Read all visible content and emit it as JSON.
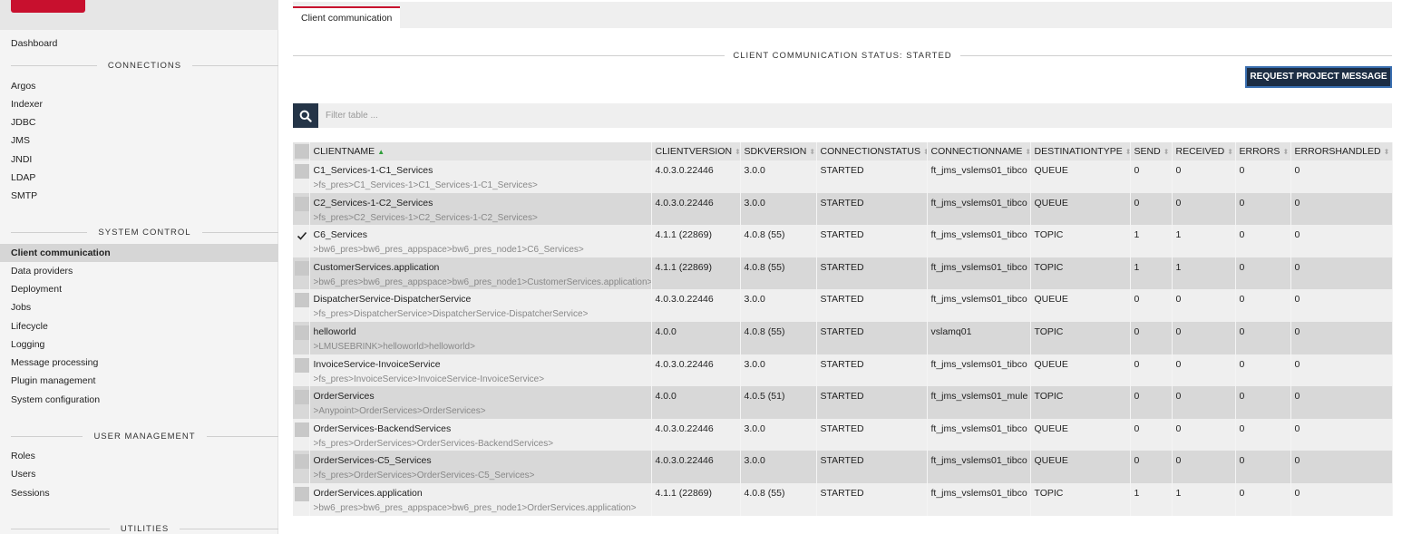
{
  "sidebar": {
    "dashboard": "Dashboard",
    "connections_title": "CONNECTIONS",
    "connections": [
      "Argos",
      "Indexer",
      "JDBC",
      "JMS",
      "JNDI",
      "LDAP",
      "SMTP"
    ],
    "system_control_title": "SYSTEM CONTROL",
    "system_control": [
      "Client communication",
      "Data providers",
      "Deployment",
      "Jobs",
      "Lifecycle",
      "Logging",
      "Message processing",
      "Plugin management",
      "System configuration"
    ],
    "user_management_title": "USER MANAGEMENT",
    "user_management": [
      "Roles",
      "Users",
      "Sessions"
    ],
    "utilities_title": "UTILITIES"
  },
  "tab": {
    "label": "Client communication"
  },
  "status": {
    "text": "CLIENT COMMUNICATION STATUS: STARTED"
  },
  "actions": {
    "request_project_message": "REQUEST PROJECT MESSAGE"
  },
  "filter": {
    "placeholder": "Filter table ..."
  },
  "colors": {
    "accent": "#c8102e",
    "button_bg": "#1c2d44",
    "sort_active": "#2e9e3a"
  },
  "table": {
    "columns": [
      "CLIENTNAME",
      "CLIENTVERSION",
      "SDKVERSION",
      "CONNECTIONSTATUS",
      "CONNECTIONNAME",
      "DESTINATIONTYPE",
      "SEND",
      "RECEIVED",
      "ERRORS",
      "ERRORSHANDLED"
    ],
    "rows": [
      {
        "name": "C1_Services-1-C1_Services",
        "path": ">fs_pres>C1_Services-1>C1_Services-1-C1_Services>",
        "clientversion": "4.0.3.0.22446",
        "sdkversion": "3.0.0",
        "status": "STARTED",
        "connection": "ft_jms_vslems01_tibco",
        "destination": "QUEUE",
        "send": "0",
        "received": "0",
        "errors": "0",
        "errorshandled": "0",
        "checked": false
      },
      {
        "name": "C2_Services-1-C2_Services",
        "path": ">fs_pres>C2_Services-1>C2_Services-1-C2_Services>",
        "clientversion": "4.0.3.0.22446",
        "sdkversion": "3.0.0",
        "status": "STARTED",
        "connection": "ft_jms_vslems01_tibco",
        "destination": "QUEUE",
        "send": "0",
        "received": "0",
        "errors": "0",
        "errorshandled": "0",
        "checked": false
      },
      {
        "name": "C6_Services",
        "path": ">bw6_pres>bw6_pres_appspace>bw6_pres_node1>C6_Services>",
        "clientversion": "4.1.1 (22869)",
        "sdkversion": "4.0.8 (55)",
        "status": "STARTED",
        "connection": "ft_jms_vslems01_tibco",
        "destination": "TOPIC",
        "send": "1",
        "received": "1",
        "errors": "0",
        "errorshandled": "0",
        "checked": true
      },
      {
        "name": "CustomerServices.application",
        "path": ">bw6_pres>bw6_pres_appspace>bw6_pres_node1>CustomerServices.application>",
        "clientversion": "4.1.1 (22869)",
        "sdkversion": "4.0.8 (55)",
        "status": "STARTED",
        "connection": "ft_jms_vslems01_tibco",
        "destination": "TOPIC",
        "send": "1",
        "received": "1",
        "errors": "0",
        "errorshandled": "0",
        "checked": false
      },
      {
        "name": "DispatcherService-DispatcherService",
        "path": ">fs_pres>DispatcherService>DispatcherService-DispatcherService>",
        "clientversion": "4.0.3.0.22446",
        "sdkversion": "3.0.0",
        "status": "STARTED",
        "connection": "ft_jms_vslems01_tibco",
        "destination": "QUEUE",
        "send": "0",
        "received": "0",
        "errors": "0",
        "errorshandled": "0",
        "checked": false
      },
      {
        "name": "helloworld",
        "path": ">LMUSEBRINK>helloworld>helloworld>",
        "clientversion": "4.0.0",
        "sdkversion": "4.0.8 (55)",
        "status": "STARTED",
        "connection": "vslamq01",
        "destination": "TOPIC",
        "send": "0",
        "received": "0",
        "errors": "0",
        "errorshandled": "0",
        "checked": false
      },
      {
        "name": "InvoiceService-InvoiceService",
        "path": ">fs_pres>InvoiceService>InvoiceService-InvoiceService>",
        "clientversion": "4.0.3.0.22446",
        "sdkversion": "3.0.0",
        "status": "STARTED",
        "connection": "ft_jms_vslems01_tibco",
        "destination": "QUEUE",
        "send": "0",
        "received": "0",
        "errors": "0",
        "errorshandled": "0",
        "checked": false
      },
      {
        "name": "OrderServices",
        "path": ">Anypoint>OrderServices>OrderServices>",
        "clientversion": "4.0.0",
        "sdkversion": "4.0.5 (51)",
        "status": "STARTED",
        "connection": "ft_jms_vslems01_mule",
        "destination": "TOPIC",
        "send": "0",
        "received": "0",
        "errors": "0",
        "errorshandled": "0",
        "checked": false
      },
      {
        "name": "OrderServices-BackendServices",
        "path": ">fs_pres>OrderServices>OrderServices-BackendServices>",
        "clientversion": "4.0.3.0.22446",
        "sdkversion": "3.0.0",
        "status": "STARTED",
        "connection": "ft_jms_vslems01_tibco",
        "destination": "QUEUE",
        "send": "0",
        "received": "0",
        "errors": "0",
        "errorshandled": "0",
        "checked": false
      },
      {
        "name": "OrderServices-C5_Services",
        "path": ">fs_pres>OrderServices>OrderServices-C5_Services>",
        "clientversion": "4.0.3.0.22446",
        "sdkversion": "3.0.0",
        "status": "STARTED",
        "connection": "ft_jms_vslems01_tibco",
        "destination": "QUEUE",
        "send": "0",
        "received": "0",
        "errors": "0",
        "errorshandled": "0",
        "checked": false
      },
      {
        "name": "OrderServices.application",
        "path": ">bw6_pres>bw6_pres_appspace>bw6_pres_node1>OrderServices.application>",
        "clientversion": "4.1.1 (22869)",
        "sdkversion": "4.0.8 (55)",
        "status": "STARTED",
        "connection": "ft_jms_vslems01_tibco",
        "destination": "TOPIC",
        "send": "1",
        "received": "1",
        "errors": "0",
        "errorshandled": "0",
        "checked": false
      }
    ]
  }
}
